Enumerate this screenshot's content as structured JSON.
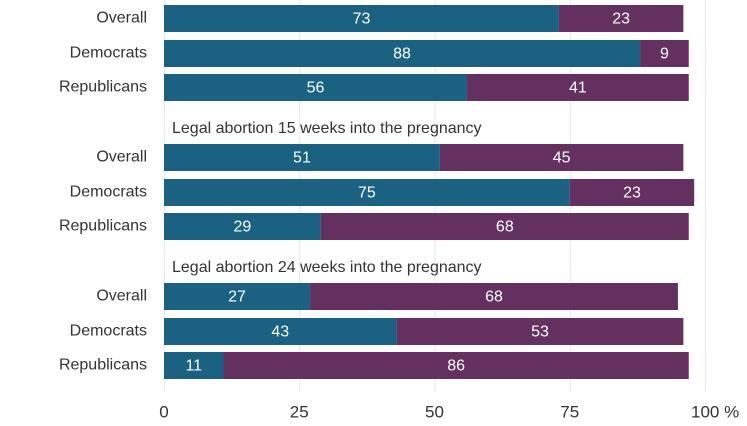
{
  "chart_data": {
    "type": "bar",
    "orientation": "horizontal",
    "stacked": true,
    "colors": {
      "series_1": "#1b6282",
      "series_2": "#64305f"
    },
    "groups": [
      {
        "title": "",
        "rows": [
          {
            "label": "Overall",
            "values": [
              73,
              23
            ]
          },
          {
            "label": "Democrats",
            "values": [
              88,
              9
            ]
          },
          {
            "label": "Republicans",
            "values": [
              56,
              41
            ]
          }
        ]
      },
      {
        "title": "Legal abortion 15 weeks into the pregnancy",
        "rows": [
          {
            "label": "Overall",
            "values": [
              51,
              45
            ]
          },
          {
            "label": "Democrats",
            "values": [
              75,
              23
            ]
          },
          {
            "label": "Republicans",
            "values": [
              29,
              68
            ]
          }
        ]
      },
      {
        "title": "Legal abortion 24 weeks into the pregnancy",
        "rows": [
          {
            "label": "Overall",
            "values": [
              27,
              68
            ]
          },
          {
            "label": "Democrats",
            "values": [
              43,
              53
            ]
          },
          {
            "label": "Republicans",
            "values": [
              11,
              86
            ]
          }
        ]
      }
    ],
    "xlim": [
      0,
      100
    ],
    "x_ticks": [
      "0",
      "25",
      "50",
      "75",
      "100 %"
    ],
    "grid": true
  }
}
